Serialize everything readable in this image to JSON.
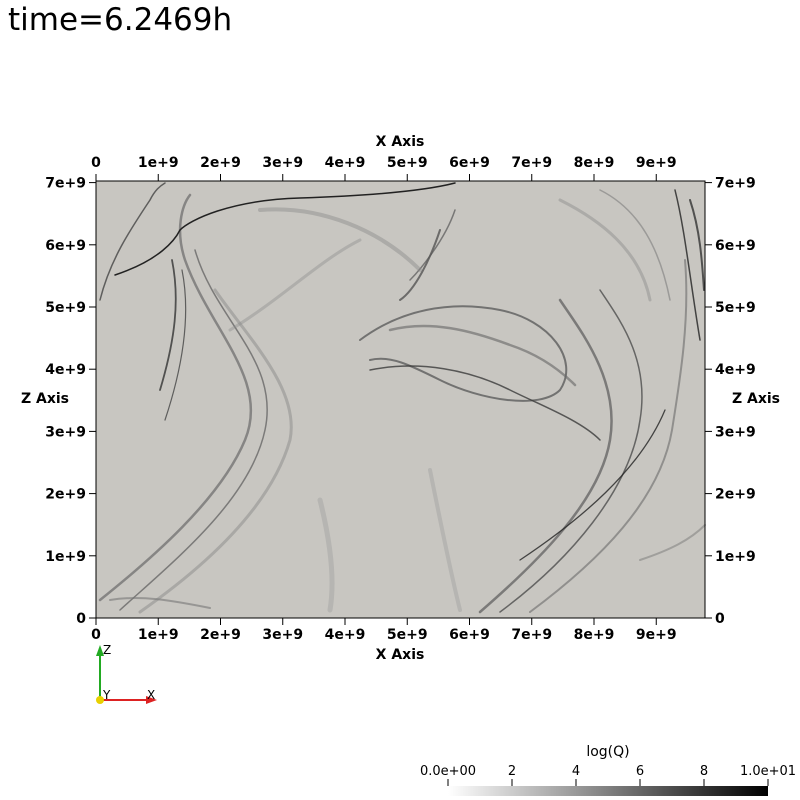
{
  "time_label": "time=6.2469h",
  "axes": {
    "x_title": "X Axis",
    "z_title": "Z Axis",
    "x_ticks": [
      "0",
      "1e+9",
      "2e+9",
      "3e+9",
      "4e+9",
      "5e+9",
      "6e+9",
      "7e+9",
      "8e+9",
      "9e+9"
    ],
    "z_ticks": [
      "0",
      "1e+9",
      "2e+9",
      "3e+9",
      "4e+9",
      "5e+9",
      "6e+9",
      "7e+9"
    ]
  },
  "orientation_triad": {
    "z": "Z",
    "y": "Y",
    "x": "X"
  },
  "colorbar": {
    "title": "log(Q)",
    "ticks": [
      "0.0e+00",
      "2",
      "4",
      "6",
      "8",
      "1.0e+01"
    ],
    "color_low": "#ffffff",
    "color_high": "#000000"
  },
  "colors": {
    "field_background": "#c8c6c1",
    "triad_z": "#22aa22",
    "triad_x": "#dd2222",
    "triad_y": "#e8d000"
  }
}
